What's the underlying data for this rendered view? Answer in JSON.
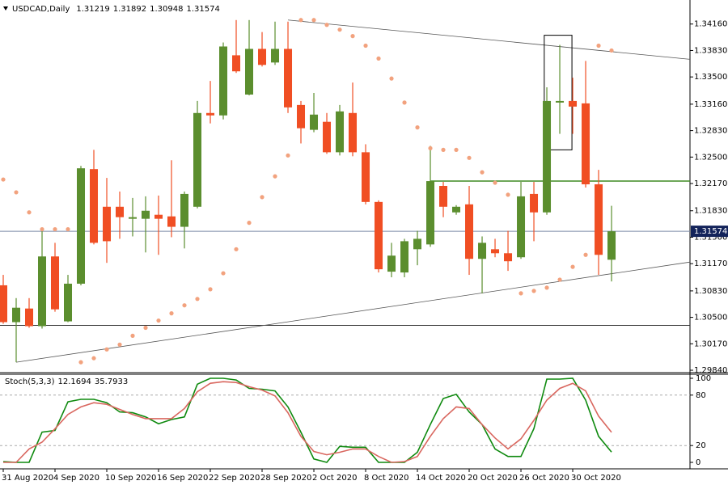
{
  "chart_data": [
    {
      "type": "candlestick",
      "title": "USDCAD,Daily",
      "categories": [
        "31 Aug 2020",
        null,
        null,
        null,
        "4 Sep 2020",
        null,
        null,
        null,
        "10 Sep 2020",
        null,
        null,
        null,
        "16 Sep 2020",
        null,
        null,
        null,
        "22 Sep 2020",
        null,
        null,
        null,
        "28 Sep 2020",
        null,
        null,
        null,
        "2 Oct 2020",
        null,
        null,
        null,
        "8 Oct 2020",
        null,
        null,
        null,
        "14 Oct 2020",
        null,
        null,
        null,
        "20 Oct 2020",
        null,
        null,
        null,
        "26 Oct 2020",
        null,
        null,
        null,
        "30 Oct 2020",
        null,
        null,
        null
      ],
      "open": [
        1.309,
        1.3044,
        1.3061,
        1.3039,
        1.3126,
        1.3045,
        1.3092,
        1.3235,
        1.3188,
        1.3188,
        1.3173,
        1.3173,
        1.3178,
        1.3176,
        1.3163,
        1.3188,
        1.3305,
        1.3302,
        1.3377,
        1.3328,
        1.3385,
        1.3368,
        1.3385,
        1.3315,
        1.3284,
        1.3294,
        1.3256,
        1.3305,
        1.3256,
        1.3194,
        1.3107,
        1.3106,
        1.3135,
        1.3141,
        1.3214,
        1.3181,
        1.3191,
        1.3123,
        1.3135,
        1.313,
        1.3125,
        1.3204,
        1.3181,
        1.3318,
        1.332,
        1.3317,
        1.3216,
        1.31219
      ],
      "high": [
        1.3103,
        1.3074,
        1.3074,
        1.3158,
        1.3143,
        1.3103,
        1.3239,
        1.3259,
        1.3224,
        1.3207,
        1.3199,
        1.3201,
        1.3202,
        1.3246,
        1.3207,
        1.332,
        1.3345,
        1.3393,
        1.3421,
        1.3421,
        1.3406,
        1.3419,
        1.3419,
        1.332,
        1.333,
        1.3305,
        1.3315,
        1.3343,
        1.3266,
        1.3196,
        1.3143,
        1.3148,
        1.3158,
        1.3264,
        1.3219,
        1.319,
        1.3214,
        1.3151,
        1.3148,
        1.3158,
        1.3219,
        1.3219,
        1.3337,
        1.339,
        1.3349,
        1.337,
        1.3234,
        1.31892
      ],
      "low": [
        1.3042,
        1.2994,
        1.3037,
        1.3036,
        1.3057,
        1.3044,
        1.309,
        1.3141,
        1.3118,
        1.3148,
        1.3151,
        1.3131,
        1.3128,
        1.315,
        1.3136,
        1.3186,
        1.3292,
        1.3297,
        1.3355,
        1.3327,
        1.3363,
        1.3365,
        1.3305,
        1.3267,
        1.3281,
        1.3254,
        1.3252,
        1.3251,
        1.3191,
        1.3106,
        1.31,
        1.31,
        1.3115,
        1.3138,
        1.3175,
        1.3178,
        1.3103,
        1.308,
        1.3125,
        1.3108,
        1.3123,
        1.3145,
        1.3178,
        1.3279,
        1.3279,
        1.3212,
        1.3103,
        1.30948
      ],
      "close": [
        1.3044,
        1.3062,
        1.3039,
        1.3126,
        1.306,
        1.3092,
        1.3236,
        1.3143,
        1.3145,
        1.3175,
        1.3175,
        1.3183,
        1.3173,
        1.3163,
        1.3204,
        1.3305,
        1.3302,
        1.3388,
        1.3357,
        1.3385,
        1.3365,
        1.3385,
        1.3312,
        1.3286,
        1.3303,
        1.3256,
        1.3307,
        1.3256,
        1.3194,
        1.311,
        1.3127,
        1.3145,
        1.3148,
        1.322,
        1.3188,
        1.3188,
        1.3123,
        1.3143,
        1.313,
        1.312,
        1.3201,
        1.3181,
        1.332,
        1.332,
        1.3313,
        1.3216,
        1.3128,
        1.31574
      ],
      "up_color": "#5b8e2e",
      "down_color": "#f04e23",
      "sar": {
        "color": "#f2a27e",
        "values": [
          1.3222,
          1.3206,
          1.3181,
          1.316,
          1.316,
          1.316,
          1.2994,
          1.2999,
          1.301,
          1.3016,
          1.3027,
          1.3037,
          1.3046,
          1.3055,
          1.3065,
          1.3073,
          1.3085,
          1.3105,
          1.3135,
          1.3168,
          1.32,
          1.3226,
          1.3252,
          1.3421,
          1.3421,
          1.3415,
          1.3409,
          1.3401,
          1.3389,
          1.3373,
          1.3348,
          1.3318,
          1.3287,
          1.3261,
          1.3259,
          1.3259,
          1.3249,
          1.3231,
          1.3218,
          1.3203,
          1.308,
          1.3083,
          1.3087,
          1.3097,
          1.3113,
          1.3128,
          1.3389,
          1.3383
        ]
      },
      "trendlines": [
        {
          "from": [
            22,
            1.3421
          ],
          "to": [
            53.06,
            1.3372
          ],
          "color": "#555555"
        },
        {
          "from": [
            1,
            1.2994
          ],
          "to": [
            53.06,
            1.3119
          ],
          "color": "#555555"
        }
      ],
      "hlines": [
        {
          "price": 1.304,
          "from": -0.25,
          "color": "#333333"
        },
        {
          "price": 1.322,
          "from": 33,
          "color": "#3f8a22"
        }
      ],
      "box": {
        "from": 41.8,
        "to": 43.94,
        "top": 1.3402,
        "bottom": 1.3259,
        "color": "#000000"
      },
      "price_line_color": "#7a8aa8",
      "price_label_color": "#13235a",
      "xlim": [
        -0.25,
        53.06
      ],
      "ylim": [
        1.2981,
        1.3446
      ],
      "yticks": [
        {
          "value": 1.3416,
          "label": "1.34160"
        },
        {
          "value": 1.3383,
          "label": "1.33830"
        },
        {
          "value": 1.335,
          "label": "1.33500"
        },
        {
          "value": 1.3316,
          "label": "1.33160"
        },
        {
          "value": 1.3283,
          "label": "1.32830"
        },
        {
          "value": 1.325,
          "label": "1.32500"
        },
        {
          "value": 1.3217,
          "label": "1.32170"
        },
        {
          "value": 1.3183,
          "label": "1.31830"
        },
        {
          "value": 1.315,
          "label": "1.31500"
        },
        {
          "value": 1.3117,
          "label": "1.31170"
        },
        {
          "value": 1.3083,
          "label": "1.30830"
        },
        {
          "value": 1.305,
          "label": "1.30500"
        },
        {
          "value": 1.3017,
          "label": "1.30170"
        },
        {
          "value": 1.2984,
          "label": "1.29840"
        }
      ]
    },
    {
      "type": "line",
      "title": "Stoch(5,3,3)",
      "series": [
        {
          "name": "%K",
          "color": "#0f8a0f",
          "values": [
            1,
            0,
            0,
            36,
            38,
            72,
            75,
            75,
            71,
            60,
            59,
            54,
            46,
            51,
            54,
            93,
            100,
            100,
            98,
            88,
            87,
            85,
            66,
            36,
            4,
            0,
            19,
            18,
            18,
            0,
            0,
            0,
            12,
            45,
            76,
            81,
            60,
            45,
            16,
            7,
            7,
            40,
            99,
            99,
            100,
            74,
            31,
            12.1694
          ]
        },
        {
          "name": "%D",
          "color": "#d9675f",
          "values": [
            0,
            0,
            16,
            24,
            40,
            57,
            66,
            71,
            69,
            63,
            57,
            52,
            52,
            52,
            64,
            84,
            94,
            96,
            95,
            90,
            86,
            79,
            59,
            31,
            13,
            9,
            12,
            16,
            16,
            7,
            0,
            1,
            7,
            31,
            52,
            66,
            64,
            45,
            29,
            16,
            28,
            50,
            74,
            88,
            94,
            85,
            55,
            35.7933
          ]
        }
      ],
      "levels": [
        20,
        80
      ],
      "ylim": [
        -7.7,
        104.8
      ],
      "yticks": [
        0,
        20,
        80,
        100
      ]
    }
  ]
}
